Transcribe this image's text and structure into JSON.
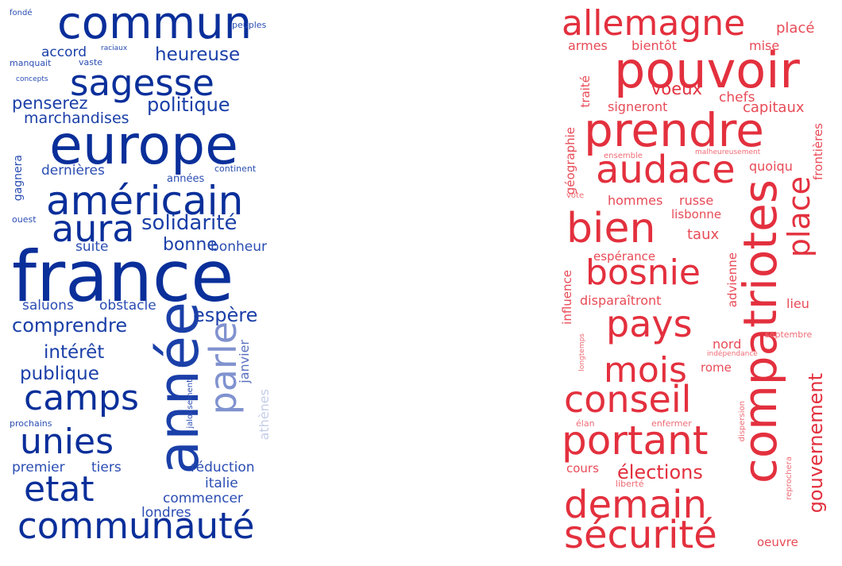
{
  "left_cloud": {
    "words": [
      {
        "text": "france",
        "color": "#0a2f9a",
        "s": 88,
        "orient": "h"
      },
      {
        "text": "europe",
        "color": "#0a2f9a",
        "s": 68,
        "orient": "h"
      },
      {
        "text": "commun",
        "color": "#0a2f9a",
        "s": 56,
        "orient": "h"
      },
      {
        "text": "année",
        "color": "#1a3fa8",
        "s": 70,
        "orient": "v"
      },
      {
        "text": "américain",
        "color": "#0a2f9a",
        "s": 50,
        "orient": "h"
      },
      {
        "text": "sagesse",
        "color": "#0a2f9a",
        "s": 45,
        "orient": "h"
      },
      {
        "text": "communauté",
        "color": "#0a2f9a",
        "s": 45,
        "orient": "h"
      },
      {
        "text": "aura",
        "color": "#0a2f9a",
        "s": 46,
        "orient": "h"
      },
      {
        "text": "camps",
        "color": "#0a2f9a",
        "s": 44,
        "orient": "h"
      },
      {
        "text": "unies",
        "color": "#0a2f9a",
        "s": 44,
        "orient": "h"
      },
      {
        "text": "etat",
        "color": "#0a2f9a",
        "s": 44,
        "orient": "h"
      },
      {
        "text": "parle",
        "color": "#8092cf",
        "s": 46,
        "orient": "v"
      },
      {
        "text": "heureuse",
        "color": "#1a3fa8",
        "s": 23,
        "orient": "h"
      },
      {
        "text": "politique",
        "color": "#1a3fa8",
        "s": 24,
        "orient": "h"
      },
      {
        "text": "penserez",
        "color": "#1a3fa8",
        "s": 21,
        "orient": "h"
      },
      {
        "text": "solidarité",
        "color": "#1a3fa8",
        "s": 26,
        "orient": "h"
      },
      {
        "text": "bonne",
        "color": "#1a3fa8",
        "s": 22,
        "orient": "h"
      },
      {
        "text": "comprendre",
        "color": "#1a3fa8",
        "s": 24,
        "orient": "h"
      },
      {
        "text": "espère",
        "color": "#1a3fa8",
        "s": 24,
        "orient": "h"
      },
      {
        "text": "intérêt",
        "color": "#1a3fa8",
        "s": 23,
        "orient": "h"
      },
      {
        "text": "publique",
        "color": "#1a3fa8",
        "s": 23,
        "orient": "h"
      },
      {
        "text": "marchandises",
        "color": "#1a3fa8",
        "s": 19,
        "orient": "h"
      },
      {
        "text": "accord",
        "color": "#1a3fa8",
        "s": 17,
        "orient": "h"
      },
      {
        "text": "dernières",
        "color": "#2a4db3",
        "s": 17,
        "orient": "h"
      },
      {
        "text": "suite",
        "color": "#2a4db3",
        "s": 17,
        "orient": "h"
      },
      {
        "text": "bonheur",
        "color": "#2a4db3",
        "s": 17,
        "orient": "h"
      },
      {
        "text": "saluons",
        "color": "#2a4db3",
        "s": 17,
        "orient": "h"
      },
      {
        "text": "obstacle",
        "color": "#2a4db3",
        "s": 17,
        "orient": "h"
      },
      {
        "text": "premier",
        "color": "#2a4db3",
        "s": 17,
        "orient": "h"
      },
      {
        "text": "tiers",
        "color": "#2a4db3",
        "s": 17,
        "orient": "h"
      },
      {
        "text": "réduction",
        "color": "#2a4db3",
        "s": 17,
        "orient": "h"
      },
      {
        "text": "italie",
        "color": "#2a4db3",
        "s": 17,
        "orient": "h"
      },
      {
        "text": "commencer",
        "color": "#2a4db3",
        "s": 17,
        "orient": "h"
      },
      {
        "text": "londres",
        "color": "#2a4db3",
        "s": 17,
        "orient": "h"
      },
      {
        "text": "années",
        "color": "#2a4db3",
        "s": 13,
        "orient": "h"
      },
      {
        "text": "gagnera",
        "color": "#2a4db3",
        "s": 14,
        "orient": "v"
      },
      {
        "text": "janvier",
        "color": "#5a70c0",
        "s": 16,
        "orient": "v"
      },
      {
        "text": "athènes",
        "color": "#c4cde9",
        "s": 16,
        "orient": "v"
      },
      {
        "text": "jalousement",
        "color": "#2a4db3",
        "s": 10,
        "orient": "v"
      },
      {
        "text": "continent",
        "color": "#2a4db3",
        "s": 11,
        "orient": "h"
      },
      {
        "text": "ouest",
        "color": "#2a4db3",
        "s": 11,
        "orient": "h"
      },
      {
        "text": "prochains",
        "color": "#2a4db3",
        "s": 11,
        "orient": "h"
      },
      {
        "text": "fondé",
        "color": "#2a4db3",
        "s": 10,
        "orient": "h"
      },
      {
        "text": "peuples",
        "color": "#2a4db3",
        "s": 11,
        "orient": "h"
      },
      {
        "text": "raciaux",
        "color": "#2a4db3",
        "s": 9,
        "orient": "h"
      },
      {
        "text": "vaste",
        "color": "#2a4db3",
        "s": 11,
        "orient": "h"
      },
      {
        "text": "manquait",
        "color": "#2a4db3",
        "s": 11,
        "orient": "h"
      },
      {
        "text": "concepts",
        "color": "#2a4db3",
        "s": 9,
        "orient": "h"
      }
    ]
  },
  "right_cloud": {
    "words": [
      {
        "text": "pouvoir",
        "color": "#e3303e",
        "s": 62,
        "orient": "h"
      },
      {
        "text": "prendre",
        "color": "#e3303e",
        "s": 58,
        "orient": "h"
      },
      {
        "text": "allemagne",
        "color": "#e3303e",
        "s": 44,
        "orient": "h"
      },
      {
        "text": "audace",
        "color": "#e3303e",
        "s": 48,
        "orient": "h"
      },
      {
        "text": "bien",
        "color": "#e3303e",
        "s": 52,
        "orient": "h"
      },
      {
        "text": "compatriotes",
        "color": "#e3303e",
        "s": 58,
        "orient": "v"
      },
      {
        "text": "place",
        "color": "#e3303e",
        "s": 38,
        "orient": "v"
      },
      {
        "text": "bosnie",
        "color": "#e3303e",
        "s": 44,
        "orient": "h"
      },
      {
        "text": "pays",
        "color": "#e3303e",
        "s": 46,
        "orient": "h"
      },
      {
        "text": "mois",
        "color": "#e3303e",
        "s": 44,
        "orient": "h"
      },
      {
        "text": "conseil",
        "color": "#e3303e",
        "s": 46,
        "orient": "h"
      },
      {
        "text": "portant",
        "color": "#e3303e",
        "s": 50,
        "orient": "h"
      },
      {
        "text": "demain",
        "color": "#e3303e",
        "s": 48,
        "orient": "h"
      },
      {
        "text": "sécurité",
        "color": "#e3303e",
        "s": 48,
        "orient": "h"
      },
      {
        "text": "gouvernement",
        "color": "#e3303e",
        "s": 24,
        "orient": "v"
      },
      {
        "text": "élections",
        "color": "#e3303e",
        "s": 24,
        "orient": "h"
      },
      {
        "text": "voeux",
        "color": "#e3303e",
        "s": 21,
        "orient": "h"
      },
      {
        "text": "capitaux",
        "color": "#e84b57",
        "s": 18,
        "orient": "h"
      },
      {
        "text": "placé",
        "color": "#e84b57",
        "s": 18,
        "orient": "h"
      },
      {
        "text": "armes",
        "color": "#e84b57",
        "s": 16,
        "orient": "h"
      },
      {
        "text": "bientôt",
        "color": "#e84b57",
        "s": 16,
        "orient": "h"
      },
      {
        "text": "mise",
        "color": "#e84b57",
        "s": 16,
        "orient": "h"
      },
      {
        "text": "chefs",
        "color": "#e84b57",
        "s": 17,
        "orient": "h"
      },
      {
        "text": "signeront",
        "color": "#e84b57",
        "s": 16,
        "orient": "h"
      },
      {
        "text": "quoiqu",
        "color": "#e84b57",
        "s": 16,
        "orient": "h"
      },
      {
        "text": "hommes",
        "color": "#e84b57",
        "s": 16,
        "orient": "h"
      },
      {
        "text": "russe",
        "color": "#e84b57",
        "s": 16,
        "orient": "h"
      },
      {
        "text": "lisbonne",
        "color": "#e84b57",
        "s": 15,
        "orient": "h"
      },
      {
        "text": "taux",
        "color": "#e84b57",
        "s": 18,
        "orient": "h"
      },
      {
        "text": "espérance",
        "color": "#e84b57",
        "s": 15,
        "orient": "h"
      },
      {
        "text": "disparaîtront",
        "color": "#e84b57",
        "s": 16,
        "orient": "h"
      },
      {
        "text": "lieu",
        "color": "#e84b57",
        "s": 16,
        "orient": "h"
      },
      {
        "text": "nord",
        "color": "#e84b57",
        "s": 16,
        "orient": "h"
      },
      {
        "text": "rome",
        "color": "#e84b57",
        "s": 15,
        "orient": "h"
      },
      {
        "text": "cours",
        "color": "#e84b57",
        "s": 15,
        "orient": "h"
      },
      {
        "text": "oeuvre",
        "color": "#e84b57",
        "s": 15,
        "orient": "h"
      },
      {
        "text": "traité",
        "color": "#e84b57",
        "s": 15,
        "orient": "v"
      },
      {
        "text": "géographie",
        "color": "#e84b57",
        "s": 15,
        "orient": "v"
      },
      {
        "text": "frontières",
        "color": "#e84b57",
        "s": 15,
        "orient": "v"
      },
      {
        "text": "influence",
        "color": "#e84b57",
        "s": 15,
        "orient": "v"
      },
      {
        "text": "advienne",
        "color": "#e84b57",
        "s": 15,
        "orient": "v"
      },
      {
        "text": "ensemble",
        "color": "#ef6b75",
        "s": 10,
        "orient": "h"
      },
      {
        "text": "malheureusement",
        "color": "#ef6b75",
        "s": 9,
        "orient": "h"
      },
      {
        "text": "vote",
        "color": "#ef6b75",
        "s": 10,
        "orient": "h"
      },
      {
        "text": "septembre",
        "color": "#ef6b75",
        "s": 11,
        "orient": "h"
      },
      {
        "text": "indépendance",
        "color": "#ef6b75",
        "s": 9,
        "orient": "h"
      },
      {
        "text": "longtemps",
        "color": "#ef6b75",
        "s": 9,
        "orient": "v"
      },
      {
        "text": "élan",
        "color": "#ef6b75",
        "s": 11,
        "orient": "h"
      },
      {
        "text": "enfermer",
        "color": "#ef6b75",
        "s": 11,
        "orient": "h"
      },
      {
        "text": "dispersion",
        "color": "#ef6b75",
        "s": 10,
        "orient": "v"
      },
      {
        "text": "liberté",
        "color": "#ef6b75",
        "s": 11,
        "orient": "h"
      },
      {
        "text": "reprochera",
        "color": "#ef6b75",
        "s": 10,
        "orient": "v"
      }
    ]
  }
}
